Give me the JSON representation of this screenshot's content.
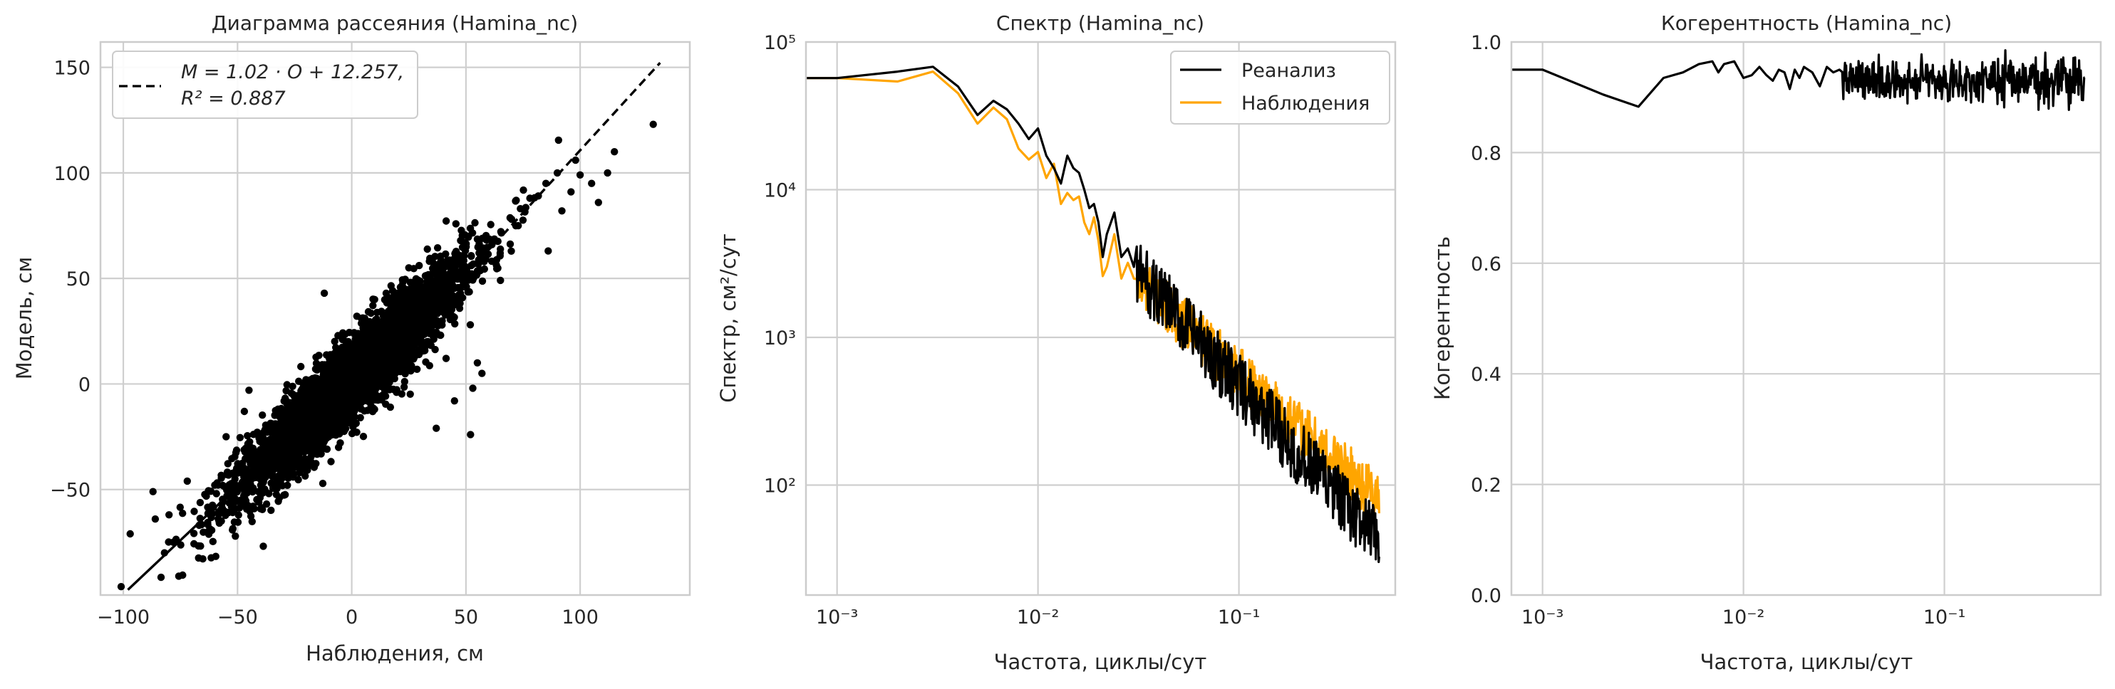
{
  "colors": {
    "reanalysis": "#000000",
    "observations": "#FFA500",
    "scatter": "#000000"
  },
  "chart_data": [
    {
      "type": "scatter",
      "title": "Диаграмма рассеяния (Hamina_nc)",
      "xlabel": "Наблюдения, см",
      "ylabel": "Модель, см",
      "xlim": [
        -110,
        148
      ],
      "ylim": [
        -100,
        162
      ],
      "xticks": [
        -100,
        -50,
        0,
        50,
        100
      ],
      "yticks": [
        -50,
        0,
        50,
        100,
        150
      ],
      "grid": true,
      "legend_position": "top-left",
      "fit": {
        "slope": 1.02,
        "intercept": 12.257,
        "r2": 0.887,
        "x_range": [
          -98,
          135
        ],
        "label_line1": "M = 1.02 · O + 12.257,",
        "label_line2": "R² = 0.887"
      },
      "cloud": {
        "x_center": 0,
        "x_spread": 25,
        "residual_spread": 9.5
      },
      "outliers": [
        {
          "x": -97,
          "y": -71
        },
        {
          "x": -82,
          "y": -80
        },
        {
          "x": -86,
          "y": -64
        },
        {
          "x": -80,
          "y": -62
        },
        {
          "x": -87,
          "y": -51
        },
        {
          "x": -72,
          "y": -46
        },
        {
          "x": -55,
          "y": -25
        },
        {
          "x": -45,
          "y": -3
        },
        {
          "x": -47,
          "y": -13
        },
        {
          "x": -12,
          "y": 43
        },
        {
          "x": 10,
          "y": 40
        },
        {
          "x": 25,
          "y": 55
        },
        {
          "x": 37,
          "y": -21
        },
        {
          "x": 45,
          "y": -8
        },
        {
          "x": 55,
          "y": 10
        },
        {
          "x": 53,
          "y": -2
        },
        {
          "x": 57,
          "y": 5
        },
        {
          "x": 52,
          "y": -24
        },
        {
          "x": 65,
          "y": 62
        },
        {
          "x": 70,
          "y": 78
        },
        {
          "x": 72,
          "y": 87
        },
        {
          "x": 85,
          "y": 95
        },
        {
          "x": 90,
          "y": 100
        },
        {
          "x": 98,
          "y": 106
        },
        {
          "x": 96,
          "y": 91
        },
        {
          "x": 100,
          "y": 99
        },
        {
          "x": 112,
          "y": 100
        },
        {
          "x": 115,
          "y": 110
        },
        {
          "x": 105,
          "y": 95
        },
        {
          "x": 108,
          "y": 86
        },
        {
          "x": 132,
          "y": 123
        },
        {
          "x": 86,
          "y": 63
        },
        {
          "x": 92,
          "y": 82
        },
        {
          "x": 78,
          "y": 88
        }
      ]
    },
    {
      "type": "line",
      "title": "Спектр (Hamina_nc)",
      "xlabel": "Частота, циклы/сут",
      "ylabel": "Спектр, см²/сут",
      "xscale": "log",
      "yscale": "log",
      "xlim": [
        0.0007,
        0.6
      ],
      "ylim": [
        18,
        100000
      ],
      "xticks": [
        0.001,
        0.01,
        0.1
      ],
      "xtick_labels": [
        "10⁻³",
        "10⁻²",
        "10⁻¹"
      ],
      "yticks": [
        100,
        1000,
        10000,
        100000
      ],
      "ytick_labels": [
        "10²",
        "10³",
        "10⁴",
        "10⁵"
      ],
      "grid": true,
      "legend_position": "top-right",
      "series": [
        {
          "name": "Реанализ",
          "color": "#000000",
          "points": [
            [
              0.0007,
              57000
            ],
            [
              0.001,
              57000
            ],
            [
              0.002,
              63000
            ],
            [
              0.003,
              68000
            ],
            [
              0.004,
              50000
            ],
            [
              0.005,
              32000
            ],
            [
              0.006,
              40000
            ],
            [
              0.007,
              35000
            ],
            [
              0.008,
              28000
            ],
            [
              0.009,
              22000
            ],
            [
              0.01,
              26000
            ],
            [
              0.011,
              17000
            ],
            [
              0.012,
              14000
            ],
            [
              0.013,
              11000
            ],
            [
              0.014,
              17000
            ],
            [
              0.015,
              14000
            ],
            [
              0.016,
              13000
            ],
            [
              0.017,
              10000
            ],
            [
              0.018,
              7500
            ],
            [
              0.019,
              8000
            ],
            [
              0.02,
              6000
            ],
            [
              0.021,
              3500
            ],
            [
              0.022,
              5000
            ],
            [
              0.024,
              7000
            ],
            [
              0.026,
              3500
            ],
            [
              0.028,
              4000
            ],
            [
              0.03,
              3000
            ]
          ]
        },
        {
          "name": "Наблюдения",
          "color": "#FFA500",
          "points": [
            [
              0.0007,
              57000
            ],
            [
              0.001,
              57000
            ],
            [
              0.002,
              54000
            ],
            [
              0.003,
              63000
            ],
            [
              0.004,
              45000
            ],
            [
              0.005,
              28000
            ],
            [
              0.006,
              36000
            ],
            [
              0.007,
              30000
            ],
            [
              0.008,
              19000
            ],
            [
              0.009,
              16000
            ],
            [
              0.01,
              18000
            ],
            [
              0.011,
              12000
            ],
            [
              0.012,
              15000
            ],
            [
              0.013,
              8000
            ],
            [
              0.014,
              9500
            ],
            [
              0.015,
              8500
            ],
            [
              0.016,
              9000
            ],
            [
              0.017,
              6000
            ],
            [
              0.018,
              5000
            ],
            [
              0.019,
              6500
            ],
            [
              0.02,
              4500
            ],
            [
              0.021,
              2600
            ],
            [
              0.022,
              3000
            ],
            [
              0.024,
              5000
            ],
            [
              0.026,
              2500
            ],
            [
              0.028,
              3200
            ],
            [
              0.03,
              2500
            ]
          ]
        }
      ],
      "tail": {
        "from": 0.031,
        "to": 0.5,
        "step_log": 0.0028,
        "reanalysis": {
          "start": 2800,
          "end": 40,
          "noise": 0.22
        },
        "observations": {
          "start": 2400,
          "end": 80,
          "noise": 0.18
        }
      }
    },
    {
      "type": "line",
      "title": "Когерентность (Hamina_nc)",
      "xlabel": "Частота, циклы/сут",
      "ylabel": "Когерентность",
      "xscale": "log",
      "xlim": [
        0.0007,
        0.6
      ],
      "ylim": [
        0,
        1.0
      ],
      "xticks": [
        0.001,
        0.01,
        0.1
      ],
      "xtick_labels": [
        "10⁻³",
        "10⁻²",
        "10⁻¹"
      ],
      "yticks": [
        0,
        0.2,
        0.4,
        0.6,
        0.8,
        1.0
      ],
      "ytick_labels": [
        "0.0",
        "0.2",
        "0.4",
        "0.6",
        "0.8",
        "1.0"
      ],
      "grid": true,
      "series": [
        {
          "name": "",
          "color": "#000000",
          "points": [
            [
              0.0007,
              0.95
            ],
            [
              0.001,
              0.95
            ],
            [
              0.002,
              0.905
            ],
            [
              0.003,
              0.883
            ],
            [
              0.004,
              0.935
            ],
            [
              0.005,
              0.945
            ],
            [
              0.006,
              0.96
            ],
            [
              0.007,
              0.965
            ],
            [
              0.0075,
              0.945
            ],
            [
              0.008,
              0.96
            ],
            [
              0.009,
              0.965
            ],
            [
              0.01,
              0.935
            ],
            [
              0.011,
              0.94
            ],
            [
              0.012,
              0.955
            ],
            [
              0.013,
              0.94
            ],
            [
              0.014,
              0.93
            ],
            [
              0.015,
              0.95
            ],
            [
              0.016,
              0.945
            ],
            [
              0.017,
              0.915
            ],
            [
              0.018,
              0.95
            ],
            [
              0.019,
              0.935
            ],
            [
              0.02,
              0.955
            ],
            [
              0.022,
              0.945
            ],
            [
              0.024,
              0.92
            ],
            [
              0.026,
              0.955
            ],
            [
              0.028,
              0.945
            ],
            [
              0.03,
              0.95
            ]
          ]
        }
      ],
      "tail": {
        "from": 0.031,
        "to": 0.5,
        "step_log": 0.0028,
        "mean": 0.93,
        "noise": 0.035,
        "min": 0.84,
        "max": 0.985
      }
    }
  ]
}
